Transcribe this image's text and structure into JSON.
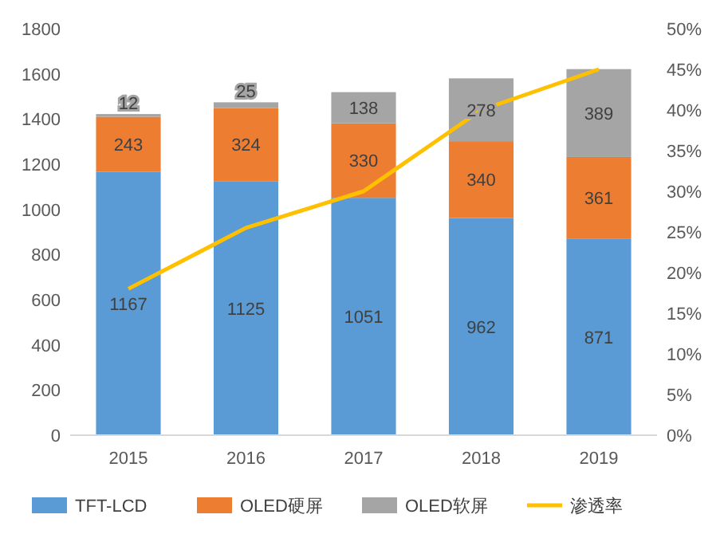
{
  "chart_data": {
    "type": "bar",
    "stacked": true,
    "categories": [
      "2015",
      "2016",
      "2017",
      "2018",
      "2019"
    ],
    "series": [
      {
        "name": "TFT-LCD",
        "color": "#5b9bd5",
        "values": [
          1167,
          1125,
          1051,
          962,
          871
        ],
        "value_labels": [
          "1167",
          "1125",
          "1051",
          "962",
          "871"
        ]
      },
      {
        "name": "OLED硬屏",
        "color": "#ed7d31",
        "values": [
          243,
          324,
          330,
          340,
          361
        ],
        "value_labels": [
          "243",
          "324",
          "330",
          "340",
          "361"
        ]
      },
      {
        "name": "OLED软屏",
        "color": "#a5a5a5",
        "values": [
          12,
          25,
          138,
          278,
          389
        ],
        "value_labels": [
          "12",
          "25",
          "138",
          "278",
          "389"
        ]
      },
      {
        "name": "渗透率",
        "type": "line",
        "axis": "y2",
        "color": "#ffc000",
        "values": [
          18,
          25.5,
          30,
          40,
          45
        ]
      }
    ],
    "ylim": [
      0,
      1800
    ],
    "yticks": [
      0,
      200,
      400,
      600,
      800,
      1000,
      1200,
      1400,
      1600,
      1800
    ],
    "y2lim": [
      0,
      50
    ],
    "y2ticks": [
      {
        "value": 0,
        "label": "0%"
      },
      {
        "value": 5,
        "label": "5%"
      },
      {
        "value": 10,
        "label": "10%"
      },
      {
        "value": 15,
        "label": "15%"
      },
      {
        "value": 20,
        "label": "20%"
      },
      {
        "value": 25,
        "label": "25%"
      },
      {
        "value": 30,
        "label": "30%"
      },
      {
        "value": 35,
        "label": "35%"
      },
      {
        "value": 40,
        "label": "40%"
      },
      {
        "value": 45,
        "label": "45%"
      },
      {
        "value": 50,
        "label": "50%"
      }
    ],
    "legend": "bottom",
    "grid": false,
    "marker": "none"
  }
}
